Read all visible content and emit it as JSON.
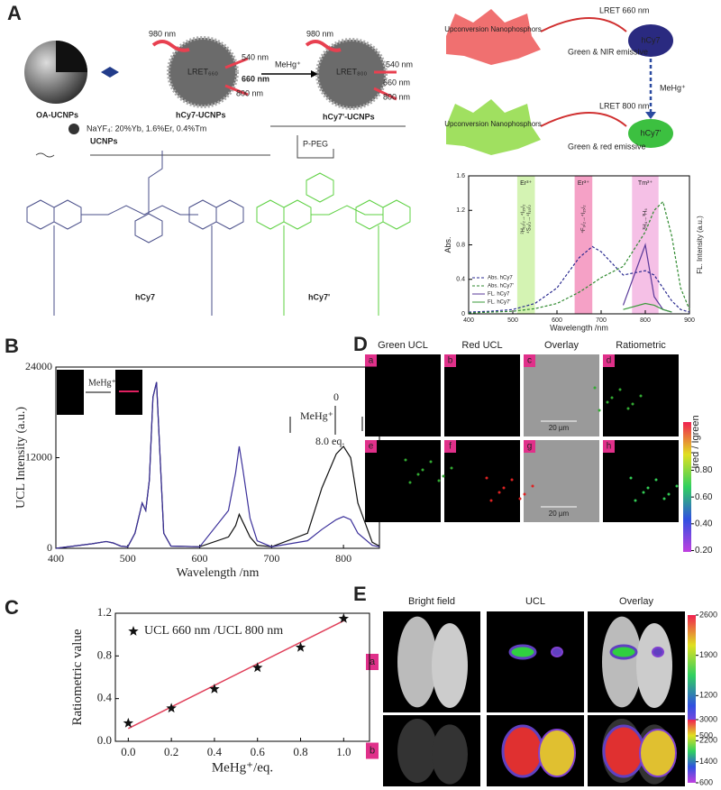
{
  "panel_A": {
    "letter": "A",
    "schematic": {
      "laser_1": "980 nm",
      "laser_2": "980 nm",
      "em_540_1": "540 nm",
      "em_660_1": "660 nm",
      "em_800_1": "800 nm",
      "lret_1": "LRET₆₆₀",
      "analyte": "MeHg⁺",
      "em_540_2": "540 nm",
      "em_660_2": "660 nm",
      "em_800_2": "800 nm",
      "lret_2": "LRET₈₀₀",
      "oa": "OA-UCNPs",
      "hcy7_ucnp": "hCy7-UCNPs",
      "hcy7p_ucnp": "hCy7'-UCNPs",
      "composition": "NaYF₄: 20%Yb, 1.6%Er, 0.4%Tm",
      "ucnps": "UCNPs",
      "ppeg": "P-PEG",
      "hcy7": "hCy7",
      "hcy7p": "hCy7'"
    },
    "flow": {
      "donor_1": "Upconversion Nanophosphors",
      "lret_1": "LRET 660 nm",
      "emission_1": "Green & NIR emissive",
      "acceptor_1": "hCy7",
      "analyte": "MeHg⁺",
      "donor_2": "Upconversion Nanophosphors",
      "lret_2": "LRET 800 nm",
      "emission_2": "Green & red emissive",
      "acceptor_2": "hCy7'"
    }
  },
  "panel_B": {
    "letter": "B",
    "inset_label": "MeHg⁺",
    "start": "0",
    "analyte": "MeHg⁺",
    "end": "8.0 eq."
  },
  "panel_C": {
    "letter": "C"
  },
  "panel_D": {
    "letter": "D",
    "columns": [
      "Green UCL",
      "Red UCL",
      "Overlay",
      "Ratiometric"
    ],
    "tiles": [
      "a",
      "b",
      "c",
      "d",
      "e",
      "f",
      "g",
      "h"
    ],
    "scale_bars": [
      "20 µm",
      "20 µm"
    ],
    "colorbar": {
      "label": "Ired / Igreen",
      "lim": [
        0.19,
        1.16
      ],
      "ticks": [
        {
          "value": 0.8,
          "label": "0.80"
        },
        {
          "value": 0.6,
          "label": "0.60"
        },
        {
          "value": 0.4,
          "label": "0.40"
        },
        {
          "value": 0.2,
          "label": "0.20"
        }
      ]
    }
  },
  "panel_E": {
    "letter": "E",
    "columns": [
      "Bright field",
      "UCL",
      "Overlay"
    ],
    "rows": [
      "a",
      "b"
    ],
    "colorbars": [
      {
        "lim": [
          500,
          2600
        ],
        "ticks": [
          2600,
          1900,
          1200,
          500
        ]
      },
      {
        "lim": [
          600,
          3000
        ],
        "ticks": [
          3000,
          2200,
          1400,
          600
        ]
      }
    ]
  },
  "chart_data": [
    {
      "type": "line",
      "ylabel": "Abs.",
      "y2label": "FL. Intensity (a.u.)",
      "xlabel": "Wavelength /nm",
      "x": [
        400,
        450,
        500,
        550,
        600,
        650,
        680,
        700,
        750,
        800,
        820,
        840,
        860,
        880,
        900
      ],
      "xlim": [
        400,
        900
      ],
      "xticks": [
        400,
        500,
        600,
        700,
        800,
        900
      ],
      "ylim": [
        0,
        1.6
      ],
      "yticks": [
        0,
        0.4,
        0.8,
        1.2,
        1.6
      ],
      "bands": [
        {
          "label": "Er³⁺",
          "from": 510,
          "to": 550,
          "color": "#c9f0a0",
          "transitions": [
            "²H₁₁/₂→⁴I₁₅/₂",
            "⁴S₃/₂→⁴I₁₅/₂"
          ]
        },
        {
          "label": "Er³⁺",
          "from": 640,
          "to": 680,
          "color": "#f38ab8",
          "transitions": [
            "⁴F₉/₂→⁴I₁₅/₂"
          ]
        },
        {
          "label": "Tm³⁺",
          "from": 770,
          "to": 830,
          "color": "#f2b0e0",
          "transitions": [
            "³H₄→³H₆"
          ]
        }
      ],
      "series": [
        {
          "name": "Abs. hCy7",
          "color": "#2a2a90",
          "style": "dashed",
          "values": [
            0.02,
            0.03,
            0.05,
            0.12,
            0.3,
            0.65,
            0.78,
            0.72,
            0.45,
            0.5,
            0.45,
            0.3,
            0.15,
            0.05,
            0.02
          ]
        },
        {
          "name": "Abs. hCy7'",
          "color": "#2f8a2f",
          "style": "dashed",
          "values": [
            0.01,
            0.02,
            0.03,
            0.06,
            0.12,
            0.25,
            0.35,
            0.42,
            0.55,
            0.95,
            1.2,
            1.3,
            0.9,
            0.3,
            0.05
          ]
        },
        {
          "name": "FL. hCy7",
          "color": "#5a3a9a",
          "style": "solid",
          "values": [
            null,
            null,
            null,
            null,
            null,
            null,
            null,
            null,
            0.1,
            0.8,
            0.2,
            0.05,
            0.02,
            null,
            null
          ]
        },
        {
          "name": "FL. hCy7'",
          "color": "#3a9a3a",
          "style": "solid",
          "values": [
            null,
            null,
            null,
            null,
            null,
            null,
            null,
            null,
            0.05,
            0.12,
            0.1,
            0.05,
            0.02,
            null,
            null
          ]
        }
      ]
    },
    {
      "type": "line",
      "ylabel": "UCL Intensity (a.u.)",
      "xlabel": "Wavelength /nm",
      "x": [
        400,
        450,
        470,
        480,
        490,
        500,
        510,
        520,
        525,
        530,
        535,
        540,
        545,
        550,
        560,
        600,
        640,
        650,
        655,
        660,
        670,
        680,
        700,
        750,
        770,
        790,
        800,
        810,
        820,
        840,
        850
      ],
      "xlim": [
        400,
        850
      ],
      "xticks": [
        400,
        500,
        600,
        700,
        800
      ],
      "ylim": [
        0,
        24000
      ],
      "yticks": [
        0,
        12000,
        24000
      ],
      "series": [
        {
          "color": "#111111",
          "style": "solid",
          "values": [
            0,
            600,
            900,
            700,
            300,
            200,
            2000,
            6000,
            5000,
            9000,
            20000,
            22000,
            12000,
            2000,
            300,
            200,
            1500,
            3000,
            4500,
            3500,
            1500,
            400,
            200,
            2000,
            8000,
            12500,
            13500,
            12000,
            6000,
            800,
            300
          ]
        },
        {
          "color": "#3a2f9a",
          "style": "solid",
          "values": [
            0,
            600,
            900,
            700,
            300,
            200,
            2000,
            6000,
            5000,
            9000,
            20000,
            22000,
            12000,
            2000,
            300,
            200,
            5000,
            10000,
            13500,
            10500,
            4000,
            1000,
            200,
            1000,
            2500,
            3800,
            4200,
            3800,
            2000,
            400,
            200
          ]
        }
      ]
    },
    {
      "type": "scatter",
      "ylabel": "Ratiometric value",
      "xlabel": "MeHg⁺/eq.",
      "legend": "UCL 660 nm /UCL 800 nm",
      "color": "#111111",
      "fit_color": "#e0405a",
      "x": [
        0,
        0.2,
        0.4,
        0.6,
        0.8,
        1.0
      ],
      "values": [
        0.17,
        0.31,
        0.49,
        0.69,
        0.88,
        1.15
      ],
      "fit": {
        "x": [
          0,
          1.0
        ],
        "y": [
          0.12,
          1.13
        ]
      },
      "xlim": [
        -0.06,
        1.12
      ],
      "xticks": [
        {
          "value": 0,
          "label": "0.0"
        },
        0.2,
        0.4,
        0.6,
        0.8,
        {
          "value": 1,
          "label": "1.0"
        }
      ],
      "ylim": [
        0,
        1.2
      ],
      "yticks": [
        {
          "value": 0,
          "label": "0.0"
        },
        0.4,
        0.8,
        1.2
      ]
    }
  ]
}
